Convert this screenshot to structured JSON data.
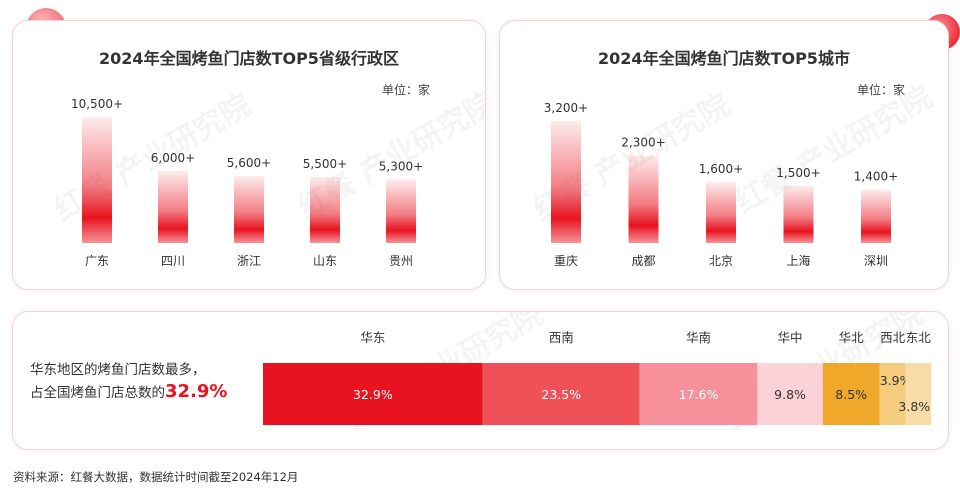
{
  "footer": "资料来源：红餐大数据，数据统计时间截至2024年12月",
  "watermark": "红餐 产业研究院",
  "chart_data": [
    {
      "type": "bar",
      "title": "2024年全国烤鱼门店数TOP5省级行政区",
      "unit": "单位：家",
      "categories": [
        "广东",
        "四川",
        "浙江",
        "山东",
        "贵州"
      ],
      "values": [
        10500,
        6000,
        5600,
        5500,
        5300
      ],
      "value_labels": [
        "10,500+",
        "6,000+",
        "5,600+",
        "5,500+",
        "5,300+"
      ],
      "ylim": [
        0,
        10500
      ],
      "grid": false,
      "bar_color": "#e8131f"
    },
    {
      "type": "bar",
      "title": "2024年全国烤鱼门店数TOP5城市",
      "unit": "单位：家",
      "categories": [
        "重庆",
        "成都",
        "北京",
        "上海",
        "深圳"
      ],
      "values": [
        3200,
        2300,
        1600,
        1500,
        1400
      ],
      "value_labels": [
        "3,200+",
        "2,300+",
        "1,600+",
        "1,500+",
        "1,400+"
      ],
      "ylim": [
        0,
        3200
      ],
      "grid": false,
      "bar_color": "#e8131f"
    },
    {
      "type": "bar",
      "subtype": "stacked-100",
      "summary_text": "华东地区的烤鱼门店数最多，",
      "summary_text2": "占全国烤鱼门店总数的",
      "summary_highlight": "32.9%",
      "categories": [
        "华东",
        "西南",
        "华南",
        "华中",
        "华北",
        "西北",
        "东北"
      ],
      "values": [
        32.9,
        23.5,
        17.6,
        9.8,
        8.5,
        3.9,
        3.8
      ],
      "value_labels": [
        "32.9%",
        "23.5%",
        "17.6%",
        "9.8%",
        "8.5%",
        "3.9%",
        "3.8%"
      ],
      "colors": [
        "#e8131f",
        "#f05058",
        "#f7909a",
        "#fbd3d6",
        "#f0a82a",
        "#f5cc7c",
        "#f8dca5"
      ],
      "label_colors": [
        "#ffffff",
        "#ffffff",
        "#ffffff",
        "#333333",
        "#333333",
        "#333333",
        "#333333"
      ]
    }
  ]
}
